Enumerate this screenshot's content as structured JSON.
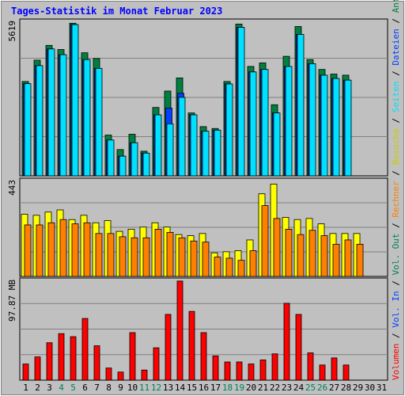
{
  "title": "Tages-Statistik im Monat Februar 2023",
  "colors": {
    "background": "#c0c0c0",
    "plot_background": "#c0c0c0",
    "hits": "#008040",
    "files": "#0040ff",
    "pages": "#00e0ff",
    "visits": "#ffff00",
    "sites": "#ff8000",
    "kbytes": "#ff0000",
    "weekend_label": "#00805c",
    "day_label": "#000000"
  },
  "chart_data": [
    {
      "type": "bar",
      "ylabel": "5619",
      "ymax": 5619,
      "categories": [
        "1",
        "2",
        "3",
        "4",
        "5",
        "6",
        "7",
        "8",
        "9",
        "10",
        "11",
        "12",
        "13",
        "14",
        "15",
        "16",
        "17",
        "18",
        "19",
        "20",
        "21",
        "22",
        "23",
        "24",
        "25",
        "26",
        "27",
        "28",
        "29",
        "30",
        "31"
      ],
      "series": [
        {
          "name": "Anfragen",
          "color": "#008040",
          "values": [
            3450,
            4230,
            4770,
            4620,
            5580,
            4500,
            4290,
            1490,
            960,
            1520,
            900,
            2500,
            3100,
            3580,
            2300,
            1800,
            1730,
            3450,
            5550,
            4000,
            4130,
            2600,
            4370,
            5460,
            4250,
            3890,
            3720,
            3680,
            0,
            0,
            0
          ]
        },
        {
          "name": "Dateien",
          "color": "#0040ff",
          "values": [
            3370,
            4030,
            4640,
            4430,
            5530,
            4250,
            3930,
            1310,
            720,
            1210,
            830,
            2230,
            2480,
            3020,
            2230,
            1630,
            1670,
            3360,
            5430,
            3800,
            3890,
            2300,
            4000,
            5170,
            4100,
            3680,
            3560,
            3500,
            0,
            0,
            0
          ]
        },
        {
          "name": "Seiten",
          "color": "#00e0ff",
          "values": [
            3370,
            4030,
            4640,
            4430,
            5530,
            4250,
            3930,
            1310,
            720,
            1210,
            830,
            2230,
            1900,
            2870,
            2230,
            1630,
            1670,
            3360,
            5430,
            3800,
            3890,
            2300,
            4000,
            5170,
            4100,
            3680,
            3560,
            3500,
            0,
            0,
            0
          ]
        }
      ],
      "right_labels": [
        "Anfragen",
        "Dateien",
        "Seiten"
      ]
    },
    {
      "type": "bar",
      "ylabel": "443",
      "ymax": 443,
      "categories": [
        "1",
        "2",
        "3",
        "4",
        "5",
        "6",
        "7",
        "8",
        "9",
        "10",
        "11",
        "12",
        "13",
        "14",
        "15",
        "16",
        "17",
        "18",
        "19",
        "20",
        "21",
        "22",
        "23",
        "24",
        "25",
        "26",
        "27",
        "28",
        "29",
        "30",
        "31"
      ],
      "series": [
        {
          "name": "Besuche",
          "color": "#ffff00",
          "values": [
            290,
            285,
            300,
            310,
            265,
            285,
            250,
            260,
            210,
            220,
            230,
            250,
            230,
            195,
            190,
            200,
            110,
            115,
            120,
            170,
            385,
            430,
            275,
            265,
            270,
            245,
            200,
            200,
            200,
            0,
            0
          ]
        },
        {
          "name": "Rechner",
          "color": "#ff8000",
          "values": [
            240,
            240,
            250,
            265,
            245,
            250,
            200,
            200,
            185,
            180,
            180,
            220,
            205,
            180,
            165,
            160,
            90,
            85,
            75,
            120,
            330,
            270,
            220,
            195,
            215,
            190,
            150,
            170,
            150,
            0,
            0
          ]
        }
      ],
      "right_labels": [
        "Besuche",
        "Rechner",
        "Vol. Out"
      ]
    },
    {
      "type": "bar",
      "ylabel": "97.87 MB",
      "ymax": 97.87,
      "categories": [
        "1",
        "2",
        "3",
        "4",
        "5",
        "6",
        "7",
        "8",
        "9",
        "10",
        "11",
        "12",
        "13",
        "14",
        "15",
        "16",
        "17",
        "18",
        "19",
        "20",
        "21",
        "22",
        "23",
        "24",
        "25",
        "26",
        "27",
        "28",
        "29",
        "30",
        "31"
      ],
      "series": [
        {
          "name": "Volumen",
          "color": "#ff0000",
          "values": [
            16,
            23,
            37,
            46,
            43,
            61,
            34,
            12,
            8,
            47,
            10,
            32,
            65,
            98,
            68,
            47,
            24,
            18,
            18,
            16,
            20,
            26,
            76,
            65,
            27,
            15,
            22,
            15,
            0,
            0,
            0
          ]
        }
      ],
      "right_labels": [
        "Volumen",
        "Vol. In"
      ]
    }
  ],
  "x_axis": {
    "labels": [
      "1",
      "2",
      "3",
      "4",
      "5",
      "6",
      "7",
      "8",
      "9",
      "10",
      "11",
      "12",
      "13",
      "14",
      "15",
      "16",
      "17",
      "18",
      "19",
      "20",
      "21",
      "22",
      "23",
      "24",
      "25",
      "26",
      "27",
      "28",
      "29",
      "30",
      "31"
    ],
    "weekend": [
      4,
      5,
      11,
      12,
      18,
      19,
      25,
      26
    ]
  }
}
